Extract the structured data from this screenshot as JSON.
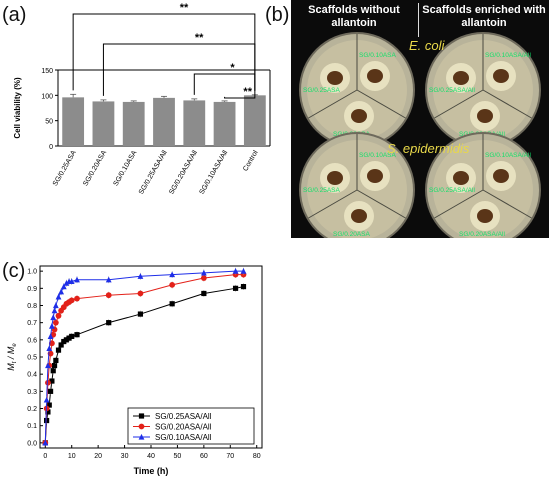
{
  "labels": {
    "a": "(a)",
    "b": "(b)",
    "c": "(c)"
  },
  "panel_b": {
    "header_left": "Scaffolds without allantoin",
    "header_right": "Scaffolds enriched with allantoin",
    "organism_top": "E. coli",
    "organism_bottom": "S. epidermidis",
    "plates": [
      [
        "SG/0.10ASA",
        "SG/0.25ASA",
        "SG/0.20ASA"
      ],
      [
        "SG/0.10ASA/All",
        "SG/0.25ASA/All",
        "SG/0.20ASA/All"
      ],
      [
        "SG/0.10ASA",
        "SG/0.25ASA",
        "SG/0.20ASA"
      ],
      [
        "SG/0.10ASA/All",
        "SG/0.25ASA/All",
        "SG/0.20ASA/All"
      ]
    ]
  },
  "chart_data": [
    {
      "type": "bar",
      "panel": "a",
      "categories": [
        "SG/0.25ASA",
        "SG/0.20ASA",
        "SG/0.10ASA",
        "SG/0.25ASA/All",
        "SG/0.20ASA/All",
        "SG/0.10ASA/All",
        "Control"
      ],
      "values": [
        96,
        88,
        87,
        95,
        90,
        87,
        100
      ],
      "errors": [
        6,
        3,
        2,
        3,
        3,
        2,
        1
      ],
      "ylabel": "Cell viability  (%)",
      "ylim": [
        0,
        150
      ],
      "yticks": [
        "0",
        "50",
        "100",
        "150"
      ],
      "color": "#8c8c8c",
      "significance": [
        {
          "from": "SG/0.25ASA",
          "to": "Control",
          "label": "**"
        },
        {
          "from": "SG/0.20ASA",
          "to": "Control",
          "label": "**"
        },
        {
          "from": "SG/0.20ASA/All",
          "to": "Control",
          "label": "*"
        },
        {
          "from": "SG/0.10ASA/All",
          "to": "Control",
          "label": "**"
        }
      ]
    },
    {
      "type": "line",
      "panel": "c",
      "xlabel": "Time (h)",
      "ylabel_main": "M",
      "ylabel_sub1": "t",
      "ylabel_mid": " / M",
      "ylabel_sub2": "e",
      "xlim": [
        -2,
        82
      ],
      "ylim": [
        -0.03,
        1.03
      ],
      "xticks": [
        "0",
        "10",
        "20",
        "30",
        "40",
        "50",
        "60",
        "70",
        "80"
      ],
      "yticks": [
        "0.0",
        "0.1",
        "0.2",
        "0.3",
        "0.4",
        "0.5",
        "0.6",
        "0.7",
        "0.8",
        "0.9",
        "1.0"
      ],
      "legend_position": "bottom-right",
      "series": [
        {
          "name": "SG/0.25ASA/All",
          "color": "#000000",
          "marker": "square",
          "x": [
            0,
            0.5,
            1,
            1.5,
            2,
            2.5,
            3,
            3.5,
            4,
            5,
            6,
            7,
            8,
            9,
            10,
            12,
            24,
            36,
            48,
            60,
            72,
            75
          ],
          "y": [
            0.0,
            0.13,
            0.18,
            0.22,
            0.3,
            0.36,
            0.42,
            0.45,
            0.48,
            0.54,
            0.57,
            0.59,
            0.6,
            0.61,
            0.62,
            0.63,
            0.7,
            0.75,
            0.81,
            0.87,
            0.9,
            0.91
          ],
          "err": [
            0,
            0.02,
            0.02,
            0.02,
            0.02,
            0.02,
            0.02,
            0.02,
            0.02,
            0.02,
            0.02,
            0.02,
            0.02,
            0.02,
            0.02,
            0.02,
            0.02,
            0.02,
            0.02,
            0.02,
            0.02,
            0.02
          ]
        },
        {
          "name": "SG/0.20ASA/All",
          "color": "#e32119",
          "marker": "circle",
          "x": [
            0,
            0.5,
            1,
            1.5,
            2,
            2.5,
            3,
            3.5,
            4,
            5,
            6,
            7,
            8,
            9,
            10,
            12,
            24,
            36,
            48,
            60,
            72,
            75
          ],
          "y": [
            0.0,
            0.2,
            0.35,
            0.45,
            0.52,
            0.58,
            0.63,
            0.66,
            0.7,
            0.74,
            0.77,
            0.79,
            0.81,
            0.82,
            0.83,
            0.84,
            0.86,
            0.87,
            0.92,
            0.96,
            0.98,
            0.98
          ],
          "err": [
            0,
            0.02,
            0.02,
            0.02,
            0.02,
            0.02,
            0.02,
            0.02,
            0.02,
            0.02,
            0.02,
            0.02,
            0.02,
            0.02,
            0.02,
            0.02,
            0.02,
            0.02,
            0.02,
            0.02,
            0.02,
            0.02
          ]
        },
        {
          "name": "SG/0.10ASA/All",
          "color": "#1e2ee8",
          "marker": "triangle",
          "x": [
            0,
            0.5,
            1,
            1.5,
            2,
            2.5,
            3,
            3.5,
            4,
            5,
            6,
            7,
            8,
            9,
            10,
            12,
            24,
            36,
            48,
            60,
            72,
            75
          ],
          "y": [
            0.0,
            0.25,
            0.45,
            0.55,
            0.62,
            0.68,
            0.73,
            0.77,
            0.8,
            0.85,
            0.88,
            0.91,
            0.93,
            0.94,
            0.94,
            0.95,
            0.95,
            0.97,
            0.98,
            0.99,
            1.0,
            1.0
          ],
          "err": [
            0,
            0.02,
            0.02,
            0.02,
            0.02,
            0.02,
            0.02,
            0.02,
            0.02,
            0.02,
            0.02,
            0.02,
            0.02,
            0.02,
            0.02,
            0.02,
            0.02,
            0.02,
            0.02,
            0.02,
            0.02,
            0.02
          ]
        }
      ]
    }
  ]
}
